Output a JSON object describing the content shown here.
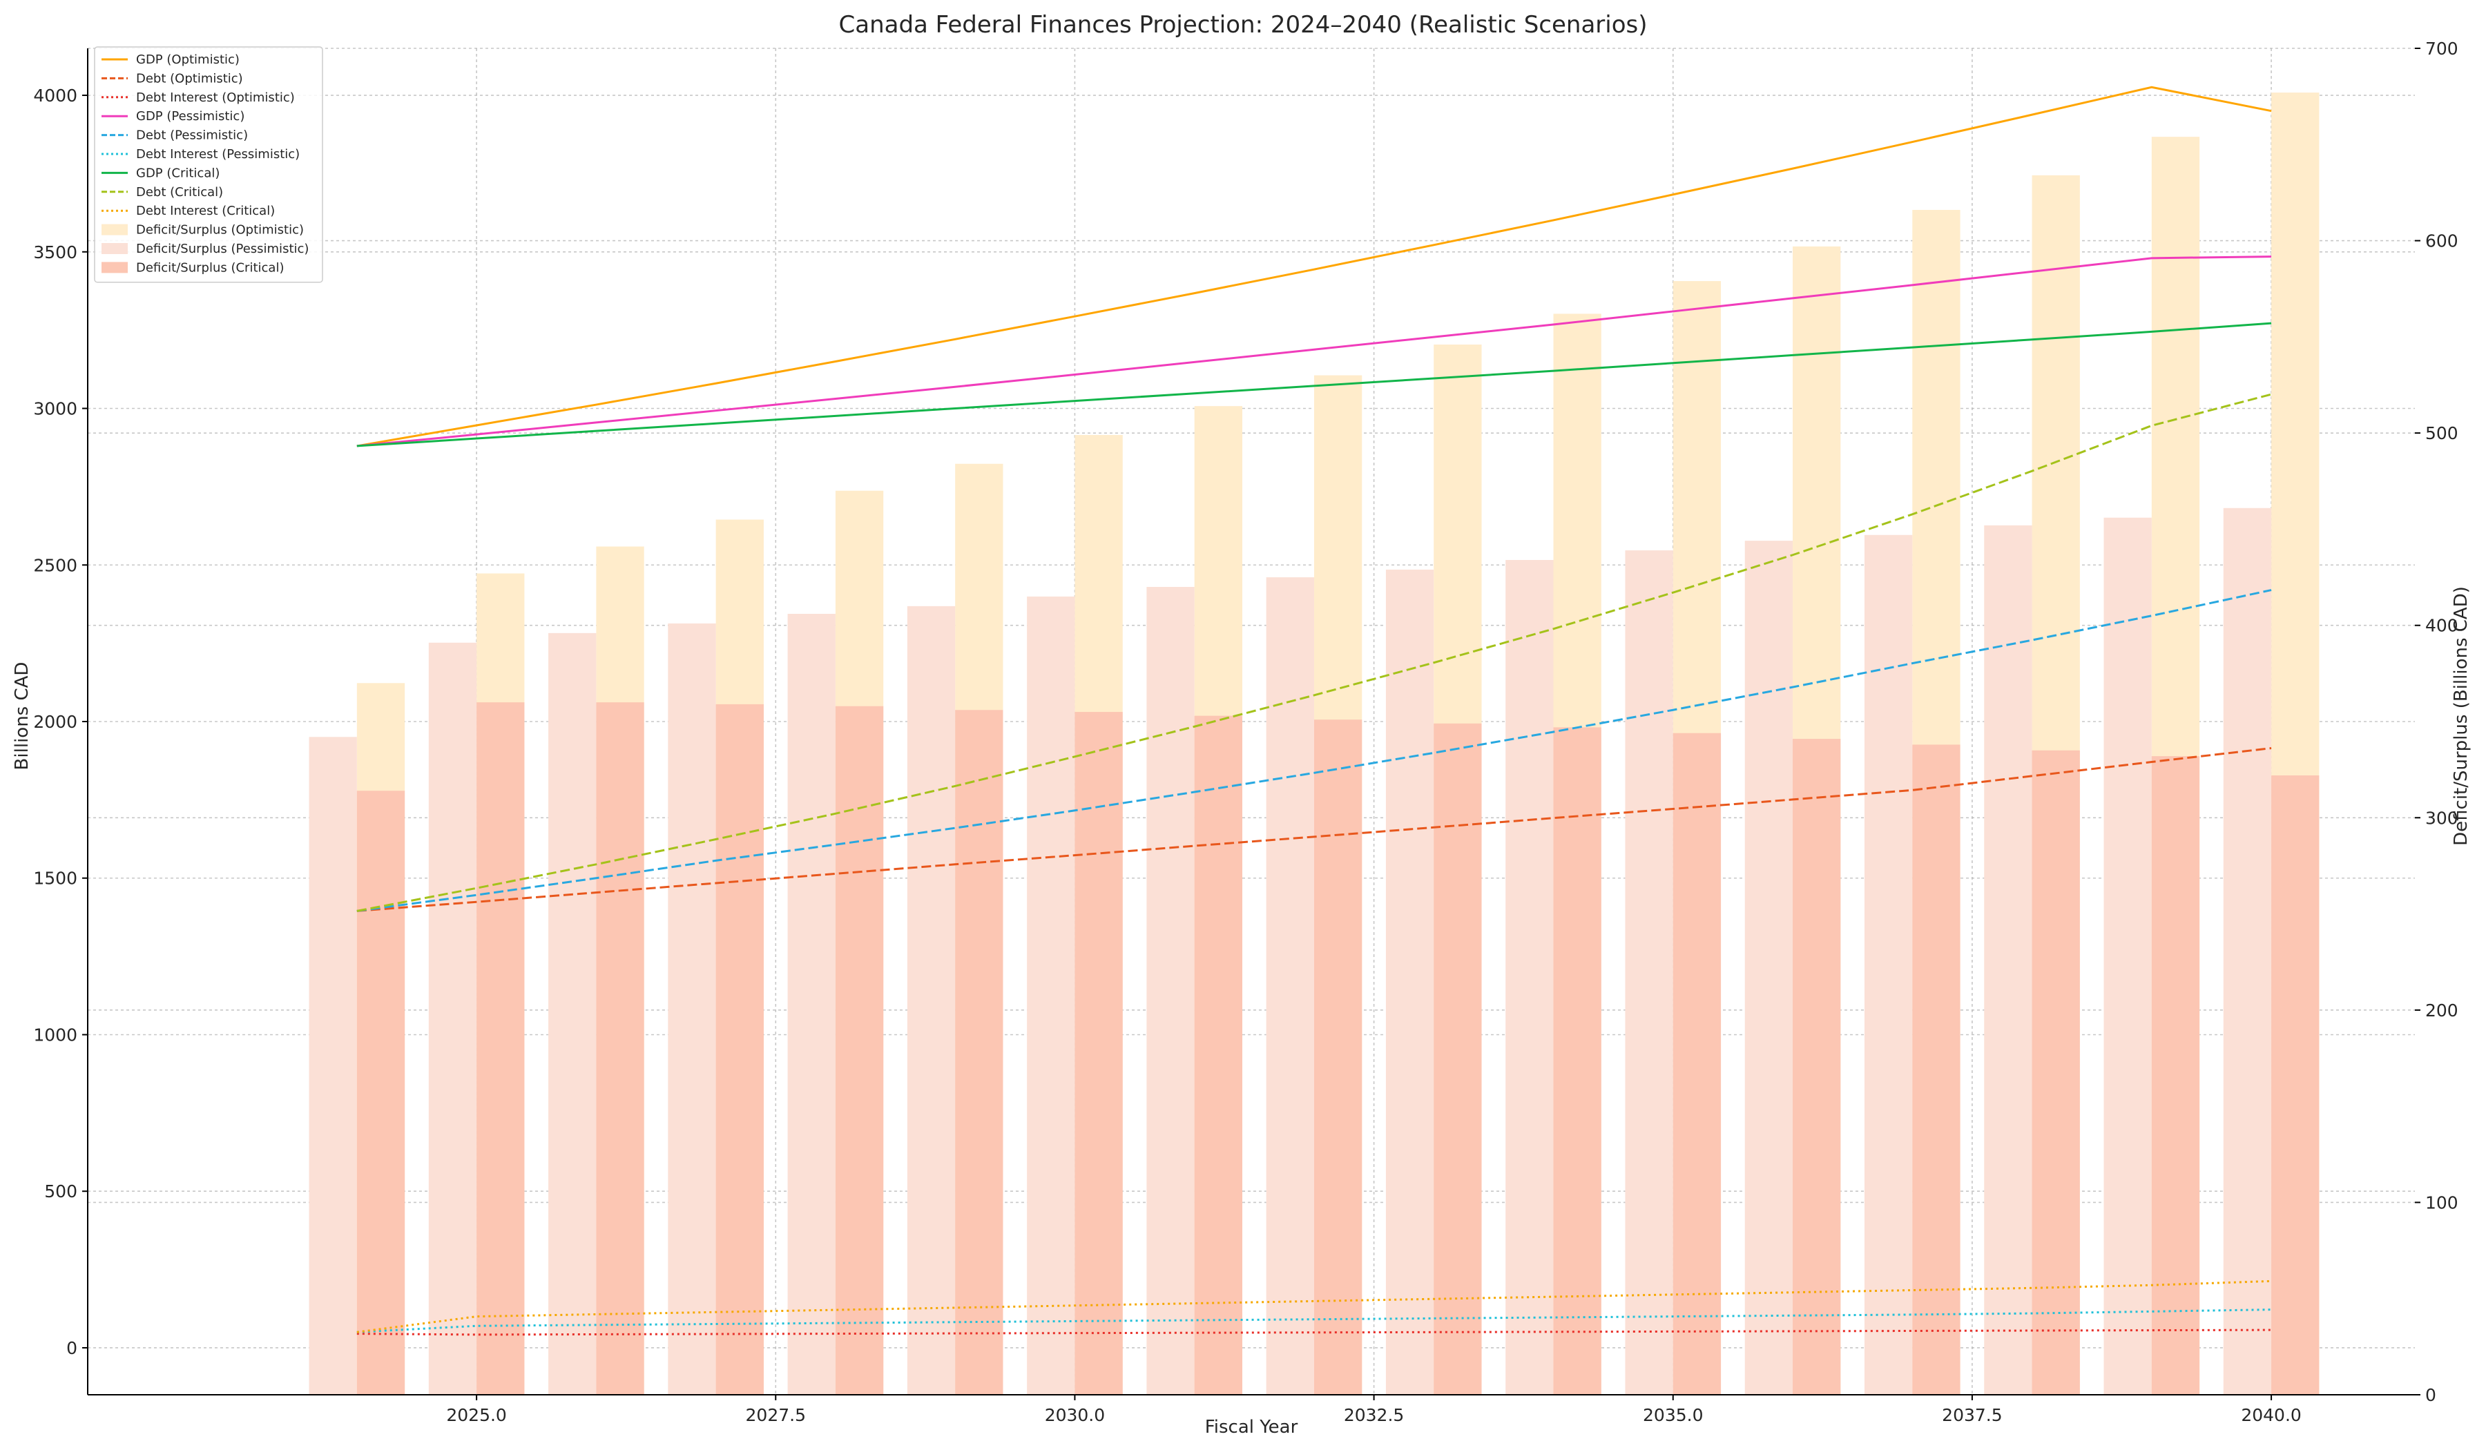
{
  "chart_data": {
    "type": "bar+line",
    "title": "Canada Federal Finances Projection: 2024–2040 (Realistic Scenarios)",
    "xlabel": "Fiscal Year",
    "ylabel_left": "Billions CAD",
    "ylabel_right": "Deficit/Surplus (Billions CAD)",
    "x": [
      2024,
      2025,
      2026,
      2027,
      2028,
      2029,
      2030,
      2031,
      2032,
      2033,
      2034,
      2035,
      2036,
      2037,
      2038,
      2039,
      2040
    ],
    "xlim": [
      2021.75,
      2041.2
    ],
    "ylim_left": [
      -150,
      4150
    ],
    "ylim_right": [
      0,
      700
    ],
    "x_ticks": [
      2025.0,
      2027.5,
      2030.0,
      2032.5,
      2035.0,
      2037.5,
      2040.0
    ],
    "x_tick_labels": [
      "2025.0",
      "2027.5",
      "2030.0",
      "2032.5",
      "2035.0",
      "2037.5",
      "2040.0"
    ],
    "y_left_ticks": [
      0,
      500,
      1000,
      1500,
      2000,
      2500,
      3000,
      3500,
      4000
    ],
    "y_left_tick_labels": [
      "0",
      "500",
      "1000",
      "1500",
      "2000",
      "2500",
      "3000",
      "3500",
      "4000"
    ],
    "y_right_ticks": [
      0,
      100,
      200,
      300,
      400,
      500,
      600,
      700
    ],
    "y_right_tick_labels": [
      "0",
      "100",
      "200",
      "300",
      "400",
      "500",
      "600",
      "700"
    ],
    "grid": true,
    "legend_placement": "upper-left",
    "line_series": [
      {
        "name": "GDP (Optimistic)",
        "color": "#ffa500",
        "style": "solid",
        "values": [
          2880,
          2946,
          3012,
          3080,
          3150,
          3221,
          3294,
          3368,
          3444,
          3522,
          3601,
          3683,
          3766,
          3851,
          3938,
          4026,
          3950
        ]
      },
      {
        "name": "Debt (Optimistic)",
        "color": "#e8571c",
        "style": "dashed",
        "values": [
          1395,
          1424,
          1454,
          1484,
          1514,
          1544,
          1573,
          1603,
          1632,
          1662,
          1692,
          1721,
          1751,
          1781,
          1826,
          1871,
          1915
        ]
      },
      {
        "name": "Debt Interest (Optimistic)",
        "color": "#e8302a",
        "style": "dotted",
        "values": [
          45,
          42,
          43,
          44,
          45,
          46,
          47,
          48,
          49,
          50,
          51,
          52,
          53,
          54,
          55,
          56,
          57
        ]
      },
      {
        "name": "GDP (Pessimistic)",
        "color": "#f03cbb",
        "style": "solid",
        "values": [
          2880,
          2917,
          2955,
          2993,
          3031,
          3069,
          3108,
          3148,
          3188,
          3228,
          3268,
          3310,
          3352,
          3394,
          3437,
          3480,
          3485
        ]
      },
      {
        "name": "Debt (Pessimistic)",
        "color": "#28a8e0",
        "style": "dashed",
        "values": [
          1395,
          1446,
          1500,
          1556,
          1607,
          1660,
          1716,
          1775,
          1836,
          1900,
          1967,
          2037,
          2110,
          2186,
          2260,
          2338,
          2420
        ]
      },
      {
        "name": "Debt Interest (Pessimistic)",
        "color": "#20c0d8",
        "style": "dotted",
        "values": [
          50,
          70,
          73,
          76,
          79,
          82,
          85,
          88,
          91,
          94,
          97,
          100,
          103,
          106,
          110,
          116,
          122
        ]
      },
      {
        "name": "GDP (Critical)",
        "color": "#12b54a",
        "style": "solid",
        "values": [
          2880,
          2904,
          2928,
          2952,
          2976,
          3000,
          3024,
          3048,
          3072,
          3096,
          3120,
          3145,
          3170,
          3195,
          3220,
          3245,
          3272
        ]
      },
      {
        "name": "Debt (Critical)",
        "color": "#a4c21a",
        "style": "dashed",
        "values": [
          1395,
          1468,
          1544,
          1624,
          1706,
          1794,
          1888,
          1984,
          2084,
          2188,
          2296,
          2412,
          2532,
          2662,
          2800,
          2945,
          3045
        ]
      },
      {
        "name": "Debt Interest (Critical)",
        "color": "#f5a800",
        "style": "dotted",
        "values": [
          50,
          100,
          107,
          114,
          121,
          128,
          135,
          142,
          149,
          156,
          163,
          170,
          177,
          184,
          191,
          200,
          213
        ]
      }
    ],
    "bar_series": [
      {
        "name": "Deficit/Surplus (Optimistic)",
        "color": "#ffeccb",
        "offset": 0.0,
        "values": [
          370,
          427,
          441,
          455,
          470,
          484,
          499,
          514,
          530,
          546,
          562,
          579,
          597,
          616,
          634,
          654,
          677
        ]
      },
      {
        "name": "Deficit/Surplus (Pessimistic)",
        "color": "#fbe0d6",
        "offset": -0.4,
        "values": [
          342,
          391,
          396,
          401,
          406,
          410,
          415,
          420,
          425,
          429,
          434,
          439,
          444,
          447,
          452,
          456,
          461
        ]
      },
      {
        "name": "Deficit/Surplus (Critical)",
        "color": "#fcc6b3",
        "offset": 0.0,
        "values": [
          314,
          360,
          360,
          359,
          358,
          356,
          355,
          353,
          351,
          349,
          347,
          344,
          341,
          338,
          335,
          332,
          322
        ]
      }
    ]
  }
}
